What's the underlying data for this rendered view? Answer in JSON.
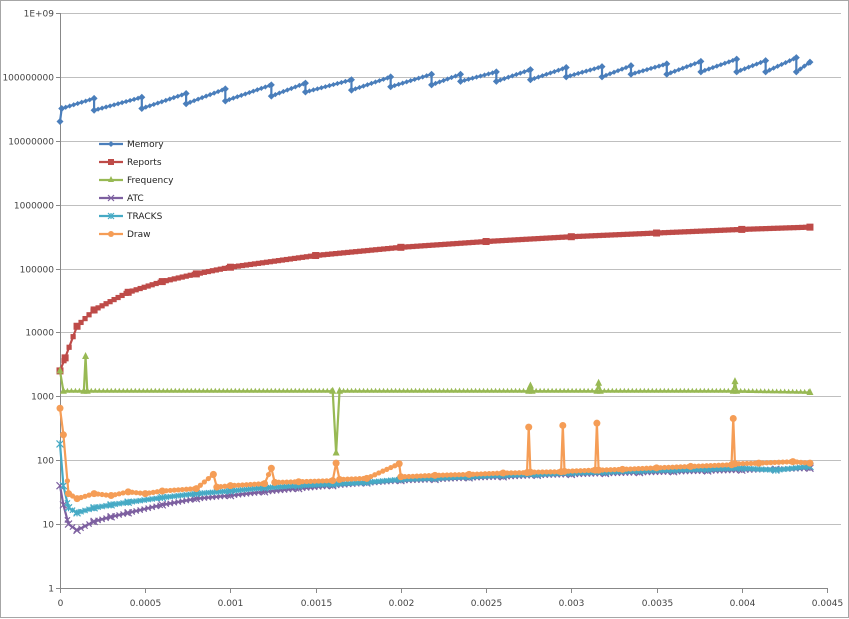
{
  "chart_data": {
    "type": "line",
    "title": "",
    "xlabel": "",
    "ylabel": "",
    "xlim": [
      0,
      0.0045
    ],
    "ylim": [
      1,
      1000000000
    ],
    "yscale": "log",
    "grid": "horizontal",
    "legend_position": "top-left inside",
    "x_ticks": [
      "0",
      "0.0005",
      "0.001",
      "0.0015",
      "0.002",
      "0.0025",
      "0.003",
      "0.0035",
      "0.004",
      "0.0045"
    ],
    "x_tick_values": [
      0,
      0.0005,
      0.001,
      0.0015,
      0.002,
      0.0025,
      0.003,
      0.0035,
      0.004,
      0.0045
    ],
    "y_ticks": [
      "1",
      "10",
      "100",
      "1000",
      "10000",
      "100000",
      "1000000",
      "10000000",
      "100000000",
      "1E+09"
    ],
    "y_tick_values": [
      1,
      10,
      100,
      1000,
      10000,
      100000,
      1000000,
      10000000,
      100000000,
      1000000000
    ],
    "series": [
      {
        "name": "Memory",
        "color": "#4a7ebb",
        "marker": "diamond",
        "points": [
          [
            0,
            20000000
          ],
          [
            1e-05,
            32000000
          ],
          [
            0.0002,
            46000000
          ],
          [
            0.0002,
            30000000
          ],
          [
            0.00048,
            48000000
          ],
          [
            0.00048,
            32000000
          ],
          [
            0.00074,
            55000000
          ],
          [
            0.00074,
            38000000
          ],
          [
            0.00097,
            65000000
          ],
          [
            0.00097,
            42000000
          ],
          [
            0.00124,
            75000000
          ],
          [
            0.00124,
            50000000
          ],
          [
            0.00144,
            80000000
          ],
          [
            0.00144,
            58000000
          ],
          [
            0.00171,
            90000000
          ],
          [
            0.00171,
            62000000
          ],
          [
            0.00194,
            100000000
          ],
          [
            0.00194,
            70000000
          ],
          [
            0.00218,
            110000000
          ],
          [
            0.00218,
            75000000
          ],
          [
            0.00235,
            110000000
          ],
          [
            0.00235,
            85000000
          ],
          [
            0.00256,
            120000000
          ],
          [
            0.00256,
            85000000
          ],
          [
            0.00276,
            130000000
          ],
          [
            0.00276,
            90000000
          ],
          [
            0.00297,
            140000000
          ],
          [
            0.00297,
            100000000
          ],
          [
            0.00318,
            145000000
          ],
          [
            0.00318,
            100000000
          ],
          [
            0.00335,
            150000000
          ],
          [
            0.00335,
            110000000
          ],
          [
            0.00356,
            160000000
          ],
          [
            0.00356,
            110000000
          ],
          [
            0.00376,
            175000000
          ],
          [
            0.00376,
            120000000
          ],
          [
            0.00397,
            190000000
          ],
          [
            0.00397,
            120000000
          ],
          [
            0.00414,
            180000000
          ],
          [
            0.00414,
            120000000
          ],
          [
            0.00432,
            200000000
          ],
          [
            0.00432,
            120000000
          ],
          [
            0.0044,
            170000000
          ]
        ]
      },
      {
        "name": "Reports",
        "color": "#be4b48",
        "marker": "square",
        "points": [
          [
            0,
            2500
          ],
          [
            3e-05,
            4000
          ],
          [
            0.0001,
            12500
          ],
          [
            0.0002,
            22500
          ],
          [
            0.0004,
            42500
          ],
          [
            0.0006,
            62500
          ],
          [
            0.0008,
            82500
          ],
          [
            0.001,
            105000
          ],
          [
            0.0015,
            160000
          ],
          [
            0.002,
            215000
          ],
          [
            0.0025,
            265000
          ],
          [
            0.003,
            315000
          ],
          [
            0.0035,
            360000
          ],
          [
            0.004,
            410000
          ],
          [
            0.0044,
            445000
          ]
        ]
      },
      {
        "name": "Frequency",
        "color": "#98b954",
        "marker": "triangle",
        "points": [
          [
            0,
            2500
          ],
          [
            2e-05,
            1200
          ],
          [
            0.00014,
            1200
          ],
          [
            0.00015,
            4200
          ],
          [
            0.00016,
            1200
          ],
          [
            0.0016,
            1200
          ],
          [
            0.00162,
            130
          ],
          [
            0.00164,
            1200
          ],
          [
            0.00275,
            1200
          ],
          [
            0.00276,
            1450
          ],
          [
            0.00277,
            1200
          ],
          [
            0.00315,
            1200
          ],
          [
            0.00316,
            1600
          ],
          [
            0.00317,
            1200
          ],
          [
            0.00395,
            1200
          ],
          [
            0.00396,
            1700
          ],
          [
            0.00397,
            1200
          ],
          [
            0.0044,
            1150
          ]
        ]
      },
      {
        "name": "ATC",
        "color": "#7d60a0",
        "marker": "x",
        "points": [
          [
            0,
            40
          ],
          [
            2e-05,
            20
          ],
          [
            5e-05,
            10
          ],
          [
            0.0001,
            8
          ],
          [
            0.0002,
            11
          ],
          [
            0.0003,
            13
          ],
          [
            0.0004,
            15
          ],
          [
            0.0006,
            20
          ],
          [
            0.0008,
            25
          ],
          [
            0.001,
            28
          ],
          [
            0.0012,
            32
          ],
          [
            0.0014,
            36
          ],
          [
            0.0016,
            40
          ],
          [
            0.0018,
            44
          ],
          [
            0.002,
            48
          ],
          [
            0.0022,
            50
          ],
          [
            0.0024,
            53
          ],
          [
            0.0026,
            55
          ],
          [
            0.0028,
            58
          ],
          [
            0.003,
            60
          ],
          [
            0.0032,
            62
          ],
          [
            0.0034,
            64
          ],
          [
            0.0036,
            66
          ],
          [
            0.0038,
            68
          ],
          [
            0.004,
            70
          ],
          [
            0.0042,
            72
          ],
          [
            0.0044,
            75
          ]
        ]
      },
      {
        "name": "TRACKS",
        "color": "#46aac5",
        "marker": "star",
        "points": [
          [
            0,
            180
          ],
          [
            2e-05,
            40
          ],
          [
            5e-05,
            18
          ],
          [
            0.0001,
            15
          ],
          [
            0.0002,
            18
          ],
          [
            0.0003,
            20
          ],
          [
            0.0004,
            22
          ],
          [
            0.0006,
            26
          ],
          [
            0.0008,
            30
          ],
          [
            0.001,
            33
          ],
          [
            0.0012,
            37
          ],
          [
            0.0014,
            40
          ],
          [
            0.0016,
            42
          ],
          [
            0.0018,
            45
          ],
          [
            0.002,
            50
          ],
          [
            0.0022,
            52
          ],
          [
            0.0024,
            55
          ],
          [
            0.0026,
            58
          ],
          [
            0.0028,
            60
          ],
          [
            0.003,
            63
          ],
          [
            0.0032,
            65
          ],
          [
            0.0034,
            68
          ],
          [
            0.0036,
            70
          ],
          [
            0.0038,
            72
          ],
          [
            0.004,
            75
          ],
          [
            0.0042,
            70
          ],
          [
            0.0044,
            80
          ]
        ]
      },
      {
        "name": "Draw",
        "color": "#f59d56",
        "marker": "circle",
        "points": [
          [
            0,
            650
          ],
          [
            2e-05,
            250
          ],
          [
            5e-05,
            30
          ],
          [
            0.0001,
            25
          ],
          [
            0.0002,
            30
          ],
          [
            0.0003,
            28
          ],
          [
            0.0004,
            32
          ],
          [
            0.0005,
            30
          ],
          [
            0.0006,
            33
          ],
          [
            0.0008,
            36
          ],
          [
            0.0009,
            60
          ],
          [
            0.00092,
            38
          ],
          [
            0.001,
            40
          ],
          [
            0.0012,
            43
          ],
          [
            0.00124,
            75
          ],
          [
            0.00126,
            45
          ],
          [
            0.0014,
            46
          ],
          [
            0.0016,
            48
          ],
          [
            0.00162,
            90
          ],
          [
            0.00164,
            50
          ],
          [
            0.0018,
            52
          ],
          [
            0.00199,
            88
          ],
          [
            0.002,
            55
          ],
          [
            0.0022,
            58
          ],
          [
            0.0024,
            60
          ],
          [
            0.0026,
            63
          ],
          [
            0.00274,
            64
          ],
          [
            0.00275,
            330
          ],
          [
            0.00276,
            65
          ],
          [
            0.00294,
            66
          ],
          [
            0.00295,
            350
          ],
          [
            0.00296,
            67
          ],
          [
            0.00314,
            70
          ],
          [
            0.00315,
            380
          ],
          [
            0.00316,
            70
          ],
          [
            0.0033,
            72
          ],
          [
            0.0035,
            76
          ],
          [
            0.0037,
            80
          ],
          [
            0.00394,
            85
          ],
          [
            0.00395,
            450
          ],
          [
            0.00396,
            88
          ],
          [
            0.0041,
            90
          ],
          [
            0.0043,
            95
          ],
          [
            0.0044,
            90
          ]
        ]
      }
    ]
  }
}
